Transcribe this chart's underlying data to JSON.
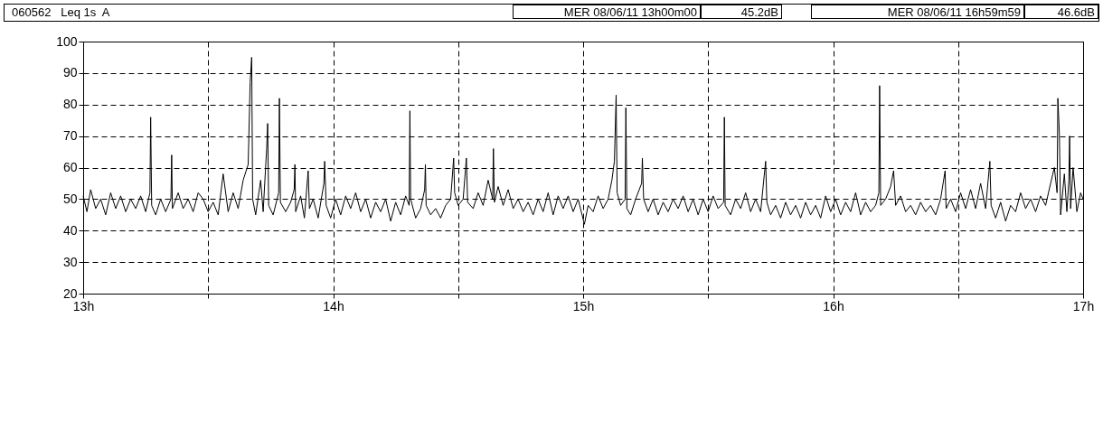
{
  "chart_data": {
    "type": "line",
    "title": "060562   Leq 1s  A",
    "annotations": [
      "MER 08/06/11 13h00m00",
      "45.2dB",
      "MER 08/06/11 16h59m59",
      "46.6dB"
    ],
    "xlim": [
      13,
      17
    ],
    "xticks": [
      {
        "value": 13,
        "label": "13h"
      },
      {
        "value": 13.5,
        "label": null
      },
      {
        "value": 14,
        "label": "14h"
      },
      {
        "value": 14.5,
        "label": null
      },
      {
        "value": 15,
        "label": "15h"
      },
      {
        "value": 15.5,
        "label": null
      },
      {
        "value": 16,
        "label": "16h"
      },
      {
        "value": 16.5,
        "label": null
      },
      {
        "value": 17,
        "label": "17h"
      }
    ],
    "ylim": [
      20,
      100
    ],
    "yticks": [
      20,
      30,
      40,
      50,
      60,
      70,
      80,
      90,
      100
    ],
    "grid": true,
    "line_style": "solid",
    "series": [
      {
        "color": "#000000",
        "x": [
          13.0,
          13.015,
          13.03,
          13.05,
          13.07,
          13.09,
          13.11,
          13.13,
          13.15,
          13.17,
          13.19,
          13.21,
          13.23,
          13.25,
          13.267,
          13.27,
          13.274,
          13.29,
          13.31,
          13.33,
          13.351,
          13.354,
          13.357,
          13.38,
          13.4,
          13.42,
          13.44,
          13.46,
          13.48,
          13.5,
          13.52,
          13.54,
          13.56,
          13.58,
          13.6,
          13.62,
          13.64,
          13.66,
          13.668,
          13.674,
          13.678,
          13.69,
          13.71,
          13.72,
          13.734,
          13.738,
          13.742,
          13.76,
          13.782,
          13.785,
          13.789,
          13.81,
          13.83,
          13.844,
          13.847,
          13.85,
          13.87,
          13.885,
          13.9,
          13.905,
          13.92,
          13.94,
          13.963,
          13.966,
          13.972,
          13.99,
          14.01,
          14.03,
          14.05,
          14.07,
          14.09,
          14.11,
          14.13,
          14.15,
          14.17,
          14.19,
          14.21,
          14.23,
          14.25,
          14.27,
          14.29,
          14.304,
          14.307,
          14.31,
          14.33,
          14.35,
          14.366,
          14.369,
          14.372,
          14.39,
          14.41,
          14.43,
          14.45,
          14.47,
          14.482,
          14.486,
          14.5,
          14.52,
          14.533,
          14.538,
          14.56,
          14.58,
          14.6,
          14.62,
          14.638,
          14.641,
          14.645,
          14.66,
          14.68,
          14.7,
          14.72,
          14.74,
          14.76,
          14.78,
          14.8,
          14.82,
          14.84,
          14.86,
          14.88,
          14.9,
          14.92,
          14.94,
          14.96,
          14.98,
          15.005,
          15.02,
          15.04,
          15.06,
          15.08,
          15.1,
          15.115,
          15.125,
          15.132,
          15.136,
          15.15,
          15.168,
          15.171,
          15.175,
          15.19,
          15.21,
          15.234,
          15.237,
          15.242,
          15.26,
          15.28,
          15.3,
          15.32,
          15.34,
          15.36,
          15.38,
          15.4,
          15.42,
          15.44,
          15.46,
          15.48,
          15.5,
          15.52,
          15.54,
          15.562,
          15.565,
          15.568,
          15.59,
          15.61,
          15.63,
          15.65,
          15.67,
          15.69,
          15.71,
          15.73,
          15.735,
          15.75,
          15.77,
          15.79,
          15.81,
          15.83,
          15.85,
          15.87,
          15.89,
          15.91,
          15.93,
          15.95,
          15.97,
          15.99,
          16.01,
          16.03,
          16.05,
          16.07,
          16.09,
          16.11,
          16.13,
          16.15,
          16.17,
          16.183,
          16.186,
          16.19,
          16.21,
          16.23,
          16.242,
          16.25,
          16.27,
          16.29,
          16.31,
          16.33,
          16.35,
          16.37,
          16.39,
          16.41,
          16.43,
          16.448,
          16.452,
          16.47,
          16.49,
          16.51,
          16.53,
          16.55,
          16.57,
          16.59,
          16.61,
          16.627,
          16.632,
          16.65,
          16.67,
          16.69,
          16.71,
          16.73,
          16.75,
          16.77,
          16.79,
          16.81,
          16.83,
          16.85,
          16.87,
          16.885,
          16.896,
          16.899,
          16.905,
          16.91,
          16.925,
          16.935,
          16.943,
          16.946,
          16.95,
          16.96,
          16.975,
          16.99,
          17.0
        ],
        "values": [
          51,
          46,
          53,
          47,
          50,
          45,
          52,
          47,
          51,
          46,
          50,
          47,
          51,
          46,
          52,
          76,
          48,
          45,
          50,
          46,
          50,
          64,
          47,
          52,
          47,
          50,
          46,
          52,
          50,
          46,
          49,
          45,
          58,
          46,
          52,
          47,
          56,
          61,
          87,
          95,
          50,
          45,
          56,
          46,
          66,
          74,
          48,
          45,
          52,
          82,
          49,
          46,
          49,
          53,
          61,
          46,
          51,
          44,
          59,
          47,
          50,
          44,
          55,
          62,
          48,
          44,
          50,
          45,
          51,
          47,
          52,
          46,
          50,
          44,
          49,
          46,
          50,
          43,
          49,
          45,
          51,
          48,
          78,
          50,
          44,
          47,
          53,
          61,
          48,
          45,
          47,
          44,
          48,
          50,
          63,
          52,
          48,
          50,
          63,
          49,
          47,
          52,
          48,
          56,
          50,
          66,
          49,
          54,
          48,
          53,
          47,
          50,
          46,
          49,
          45,
          50,
          46,
          52,
          45,
          51,
          47,
          51,
          46,
          50,
          42,
          48,
          46,
          51,
          47,
          50,
          56,
          62,
          83,
          52,
          48,
          50,
          79,
          47,
          45,
          50,
          55,
          63,
          50,
          46,
          50,
          45,
          49,
          46,
          50,
          47,
          51,
          46,
          50,
          45,
          50,
          46,
          51,
          47,
          49,
          76,
          48,
          45,
          50,
          47,
          52,
          46,
          50,
          46,
          62,
          49,
          45,
          48,
          44,
          49,
          45,
          48,
          44,
          49,
          45,
          48,
          44,
          51,
          46,
          50,
          45,
          49,
          46,
          52,
          45,
          49,
          46,
          48,
          52,
          86,
          48,
          50,
          54,
          59,
          48,
          51,
          46,
          48,
          45,
          49,
          46,
          48,
          45,
          50,
          59,
          47,
          50,
          46,
          52,
          47,
          53,
          47,
          55,
          47,
          62,
          48,
          44,
          49,
          43,
          48,
          46,
          52,
          47,
          50,
          46,
          51,
          48,
          55,
          60,
          52,
          82,
          71,
          45,
          58,
          46,
          56,
          70,
          47,
          60,
          46,
          52,
          50
        ]
      }
    ]
  }
}
